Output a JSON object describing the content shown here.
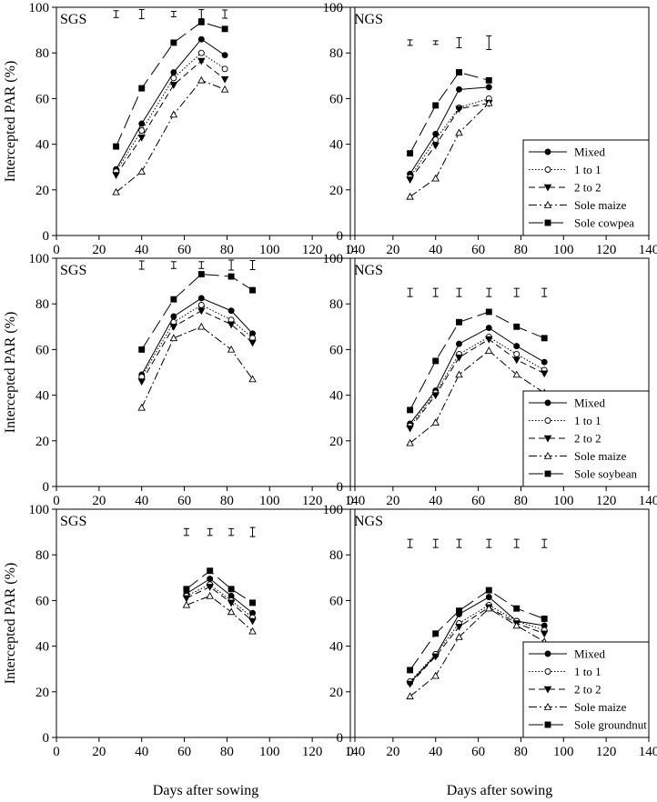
{
  "figure": {
    "xlabel": "Days after sowing",
    "ylabel": "Intercepted PAR (%)"
  },
  "chart_data": [
    {
      "type": "line",
      "row": 0,
      "col": 0,
      "label": "SGS",
      "xlim": [
        0,
        140
      ],
      "ylim": [
        0,
        100
      ],
      "xticks": [
        0,
        20,
        40,
        60,
        80,
        100,
        120,
        140
      ],
      "yticks": [
        0,
        20,
        40,
        60,
        80,
        100
      ],
      "x": [
        28,
        40,
        55,
        68,
        79
      ],
      "series": [
        {
          "name": "Mixed",
          "values": [
            29,
            49,
            71.5,
            86,
            79
          ]
        },
        {
          "name": "1 to 1",
          "values": [
            28,
            46,
            69,
            80,
            73
          ]
        },
        {
          "name": "2 to 2",
          "values": [
            26.5,
            43,
            66,
            76.5,
            68.5
          ]
        },
        {
          "name": "Sole maize",
          "values": [
            19,
            28,
            53,
            68,
            64
          ]
        },
        {
          "name": "Sole cowpea",
          "values": [
            39,
            64.5,
            84.5,
            93.5,
            90.5
          ]
        }
      ],
      "error_bars": {
        "x": [
          28,
          40,
          55,
          68,
          79
        ],
        "center": [
          97,
          97,
          97,
          97,
          97
        ],
        "half": [
          1.5,
          2,
          1.2,
          2,
          1.8
        ]
      },
      "legend": false
    },
    {
      "type": "line",
      "row": 0,
      "col": 1,
      "label": "NGS",
      "xlim": [
        0,
        140
      ],
      "ylim": [
        0,
        100
      ],
      "xticks": [
        0,
        20,
        40,
        60,
        80,
        100,
        120,
        140
      ],
      "yticks": [
        0,
        20,
        40,
        60,
        80,
        100
      ],
      "x": [
        28,
        40,
        51,
        65
      ],
      "series": [
        {
          "name": "Mixed",
          "values": [
            27,
            44.5,
            64,
            65
          ]
        },
        {
          "name": "1 to 1",
          "values": [
            25.5,
            42,
            56,
            60
          ]
        },
        {
          "name": "2 to 2",
          "values": [
            24.5,
            39.5,
            55.5,
            58
          ]
        },
        {
          "name": "Sole maize",
          "values": [
            17,
            25,
            45,
            58
          ]
        },
        {
          "name": "Sole cowpea",
          "values": [
            36,
            57,
            71.5,
            68
          ]
        }
      ],
      "error_bars": {
        "x": [
          28,
          40,
          51,
          65
        ],
        "center": [
          84.5,
          84.5,
          84.5,
          84.5
        ],
        "half": [
          1.2,
          0.8,
          2.2,
          3
        ]
      },
      "legend": true
    },
    {
      "type": "line",
      "row": 1,
      "col": 0,
      "label": "SGS",
      "xlim": [
        0,
        140
      ],
      "ylim": [
        0,
        100
      ],
      "xticks": [
        0,
        20,
        40,
        60,
        80,
        100,
        120,
        140
      ],
      "yticks": [
        0,
        20,
        40,
        60,
        80,
        100
      ],
      "x": [
        40,
        55,
        68,
        82,
        92
      ],
      "series": [
        {
          "name": "Mixed",
          "values": [
            49,
            74.5,
            82.5,
            77,
            67
          ]
        },
        {
          "name": "1 to 1",
          "values": [
            48,
            72,
            79.5,
            73,
            65
          ]
        },
        {
          "name": "2 to 2",
          "values": [
            46,
            70,
            77,
            71,
            63
          ]
        },
        {
          "name": "Sole maize",
          "values": [
            34.5,
            65,
            70,
            60,
            47
          ]
        },
        {
          "name": "Sole soybean",
          "values": [
            60,
            82,
            93,
            92,
            86
          ]
        }
      ],
      "error_bars": {
        "x": [
          40,
          55,
          68,
          82,
          92
        ],
        "center": [
          97,
          97,
          97,
          97,
          97
        ],
        "half": [
          1.8,
          1.5,
          1.5,
          2.2,
          2
        ]
      },
      "legend": false
    },
    {
      "type": "line",
      "row": 1,
      "col": 1,
      "label": "NGS",
      "xlim": [
        0,
        140
      ],
      "ylim": [
        0,
        100
      ],
      "xticks": [
        0,
        20,
        40,
        60,
        80,
        100,
        120,
        140
      ],
      "yticks": [
        0,
        20,
        40,
        60,
        80,
        100
      ],
      "x": [
        28,
        40,
        51,
        65,
        78,
        91
      ],
      "series": [
        {
          "name": "Mixed",
          "values": [
            27.5,
            42,
            62.5,
            69.5,
            61.5,
            54.5
          ]
        },
        {
          "name": "1 to 1",
          "values": [
            26.5,
            41,
            58,
            65.5,
            58,
            51
          ]
        },
        {
          "name": "2 to 2",
          "values": [
            25.5,
            40,
            56.5,
            64.5,
            55.5,
            49.5
          ]
        },
        {
          "name": "Sole maize",
          "values": [
            19,
            28,
            49,
            59.5,
            49,
            41
          ]
        },
        {
          "name": "Sole soybean",
          "values": [
            33.5,
            55,
            72,
            76.5,
            70,
            65
          ]
        }
      ],
      "error_bars": {
        "x": [
          28,
          40,
          51,
          65,
          78,
          91
        ],
        "center": [
          85,
          85,
          85,
          85,
          85,
          85
        ],
        "half": [
          1.8,
          1.8,
          1.8,
          1.8,
          1.8,
          1.8
        ]
      },
      "legend": true
    },
    {
      "type": "line",
      "row": 2,
      "col": 0,
      "label": "SGS",
      "xlim": [
        0,
        140
      ],
      "ylim": [
        0,
        100
      ],
      "xticks": [
        0,
        20,
        40,
        60,
        80,
        100,
        120,
        140
      ],
      "yticks": [
        0,
        20,
        40,
        60,
        80,
        100
      ],
      "x": [
        61,
        72,
        82,
        92
      ],
      "series": [
        {
          "name": "Mixed",
          "values": [
            63,
            69.5,
            62,
            54.5
          ]
        },
        {
          "name": "1 to 1",
          "values": [
            62,
            67,
            60,
            52.5
          ]
        },
        {
          "name": "2 to 2",
          "values": [
            61,
            66,
            59,
            51
          ]
        },
        {
          "name": "Sole maize",
          "values": [
            58,
            62,
            55,
            46.5
          ]
        },
        {
          "name": "Sole groundnut",
          "values": [
            65,
            73,
            65,
            59
          ]
        }
      ],
      "error_bars": {
        "x": [
          61,
          72,
          82,
          92
        ],
        "center": [
          90,
          90,
          90,
          90
        ],
        "half": [
          1.5,
          1.5,
          1.5,
          2
        ]
      },
      "legend": false
    },
    {
      "type": "line",
      "row": 2,
      "col": 1,
      "label": "NGS",
      "xlim": [
        0,
        140
      ],
      "ylim": [
        0,
        100
      ],
      "xticks": [
        0,
        20,
        40,
        60,
        80,
        100,
        120,
        140
      ],
      "yticks": [
        0,
        20,
        40,
        60,
        80,
        100
      ],
      "x": [
        28,
        40,
        51,
        65,
        78,
        91
      ],
      "series": [
        {
          "name": "Mixed",
          "values": [
            24,
            36,
            54,
            61.5,
            51,
            49
          ]
        },
        {
          "name": "1 to 1",
          "values": [
            24.5,
            36.5,
            50,
            58,
            51,
            47
          ]
        },
        {
          "name": "2 to 2",
          "values": [
            23.5,
            35.5,
            48.5,
            57,
            50,
            45.5
          ]
        },
        {
          "name": "Sole maize",
          "values": [
            18,
            27,
            44,
            56.5,
            49,
            42
          ]
        },
        {
          "name": "Sole groundnut",
          "values": [
            29.5,
            45.5,
            55.5,
            64.5,
            56.5,
            52
          ]
        }
      ],
      "error_bars": {
        "x": [
          28,
          40,
          51,
          65,
          78,
          91
        ],
        "center": [
          85,
          85,
          85,
          85,
          85,
          85
        ],
        "half": [
          1.8,
          1.8,
          1.8,
          1.8,
          1.8,
          1.8
        ]
      },
      "legend": true
    }
  ]
}
